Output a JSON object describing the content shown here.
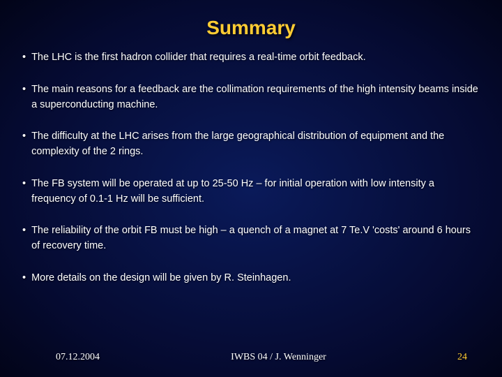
{
  "colors": {
    "title": "#ffcc33",
    "body_text": "#ffffff",
    "footer_text": "#ffffff",
    "page_number": "#ffcc33"
  },
  "title": "Summary",
  "bullets": [
    "The LHC is the first hadron collider that requires a real-time orbit feedback.",
    "The main reasons for a feedback are the collimation requirements of the high intensity beams inside a superconducting machine.",
    "The difficulty at the LHC arises from the large geographical distribution of equipment and the complexity of the 2 rings.",
    "The FB system will be operated at up to 25-50 Hz – for initial operation with low intensity a frequency of 0.1-1 Hz will be sufficient.",
    "The reliability of the orbit FB must be high – a quench of a magnet at 7 Te.V 'costs' around 6 hours of recovery time.",
    "More details on the design will be given by R. Steinhagen."
  ],
  "footer": {
    "date": "07.12.2004",
    "center": "IWBS 04 / J. Wenninger",
    "page": "24"
  }
}
